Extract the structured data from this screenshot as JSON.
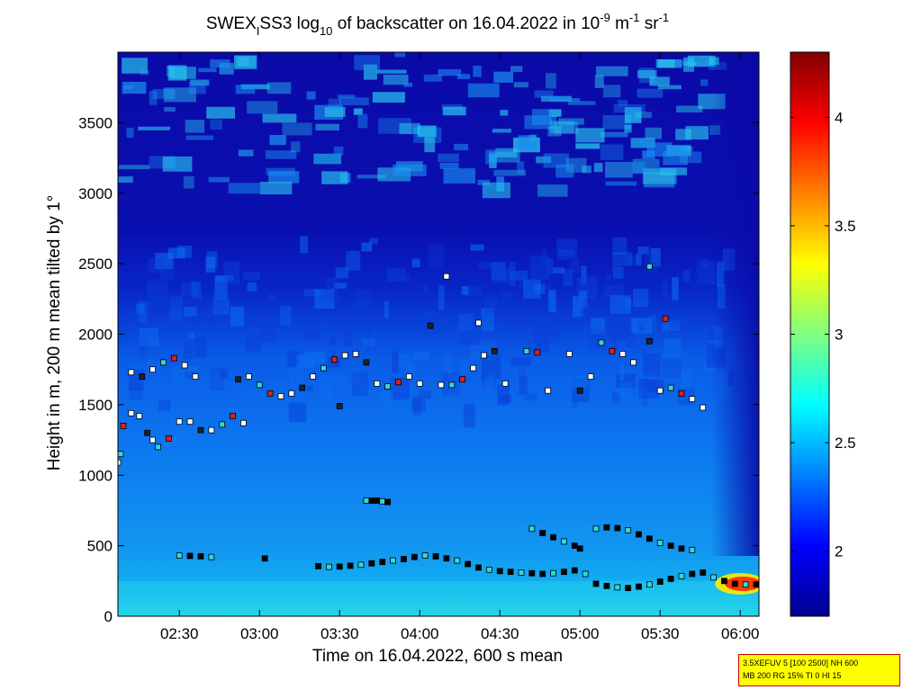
{
  "chart_data": {
    "type": "heatmap",
    "title": {
      "prefix": "SWEX",
      "sub1": "I",
      "mid1": "SS3 log",
      "sub2": "10",
      "mid2": " of backscatter on 16.04.2022 in 10",
      "sup1": "-9",
      "mid3": " m",
      "sup2": "-1",
      "mid4": " sr",
      "sup3": "-1"
    },
    "xlabel": "Time on 16.04.2022, 600 s mean",
    "ylabel": "Height in m, 200 m mean tilted by 1°",
    "x_range": [
      "02:07",
      "06:07"
    ],
    "ylim": [
      0,
      4000
    ],
    "x_ticks": [
      "02:30",
      "03:00",
      "03:30",
      "04:00",
      "04:30",
      "05:00",
      "05:30",
      "06:00"
    ],
    "y_ticks": [
      "0",
      "500",
      "1000",
      "1500",
      "2000",
      "2500",
      "3000",
      "3500"
    ],
    "colorbar": {
      "range": [
        1.7,
        4.3
      ],
      "ticks": [
        "2",
        "2.5",
        "3",
        "3.5",
        "4"
      ],
      "colormap": [
        "#00008f",
        "#0000ff",
        "#0080ff",
        "#00ffff",
        "#80ff80",
        "#ffff00",
        "#ff8000",
        "#ff0000",
        "#800000"
      ]
    },
    "layer_series": [
      {
        "name": "boundary-layer-top",
        "marker": "black-square",
        "points": [
          [
            "02:30",
            430
          ],
          [
            "02:34",
            428
          ],
          [
            "02:38",
            425
          ],
          [
            "02:42",
            420
          ],
          [
            "03:02",
            410
          ],
          [
            "03:22",
            355
          ],
          [
            "03:26",
            350
          ],
          [
            "03:30",
            352
          ],
          [
            "03:34",
            358
          ],
          [
            "03:38",
            365
          ],
          [
            "03:42",
            375
          ],
          [
            "03:46",
            385
          ],
          [
            "03:50",
            395
          ],
          [
            "03:54",
            405
          ],
          [
            "03:58",
            420
          ],
          [
            "04:02",
            430
          ],
          [
            "04:06",
            425
          ],
          [
            "04:10",
            410
          ],
          [
            "04:14",
            395
          ],
          [
            "04:18",
            370
          ],
          [
            "04:22",
            345
          ],
          [
            "04:26",
            330
          ],
          [
            "04:30",
            320
          ],
          [
            "04:34",
            315
          ],
          [
            "04:38",
            310
          ],
          [
            "04:42",
            305
          ],
          [
            "04:46",
            300
          ],
          [
            "04:50",
            305
          ],
          [
            "04:54",
            315
          ],
          [
            "04:58",
            325
          ],
          [
            "05:02",
            300
          ],
          [
            "05:06",
            230
          ],
          [
            "05:10",
            215
          ],
          [
            "05:14",
            205
          ],
          [
            "05:18",
            200
          ],
          [
            "05:22",
            210
          ],
          [
            "05:26",
            225
          ],
          [
            "05:30",
            245
          ],
          [
            "05:34",
            265
          ],
          [
            "05:38",
            285
          ],
          [
            "05:42",
            300
          ],
          [
            "05:46",
            310
          ],
          [
            "05:50",
            275
          ],
          [
            "05:54",
            250
          ],
          [
            "05:58",
            230
          ],
          [
            "06:02",
            225
          ],
          [
            "06:06",
            225
          ]
        ]
      },
      {
        "name": "lower-layer-2",
        "marker": "black-square",
        "points": [
          [
            "04:42",
            620
          ],
          [
            "04:46",
            590
          ],
          [
            "04:50",
            560
          ],
          [
            "04:54",
            530
          ],
          [
            "04:58",
            500
          ],
          [
            "05:00",
            480
          ],
          [
            "05:06",
            620
          ],
          [
            "05:10",
            630
          ],
          [
            "05:14",
            625
          ],
          [
            "05:18",
            610
          ],
          [
            "05:22",
            580
          ],
          [
            "05:26",
            550
          ],
          [
            "05:30",
            520
          ],
          [
            "05:34",
            500
          ],
          [
            "05:38",
            480
          ],
          [
            "05:42",
            470
          ]
        ]
      },
      {
        "name": "isolated-layer",
        "marker": "black-square",
        "points": [
          [
            "03:40",
            820
          ],
          [
            "03:42",
            820
          ],
          [
            "03:44",
            820
          ],
          [
            "03:46",
            815
          ],
          [
            "03:48",
            810
          ]
        ]
      },
      {
        "name": "aerosol-top",
        "marker": "mixed-square",
        "points": [
          [
            "02:07",
            1090
          ],
          [
            "02:08",
            1150
          ],
          [
            "02:09",
            1350
          ],
          [
            "02:12",
            1440
          ],
          [
            "02:15",
            1420
          ],
          [
            "02:18",
            1300
          ],
          [
            "02:20",
            1250
          ],
          [
            "02:22",
            1200
          ],
          [
            "02:26",
            1260
          ],
          [
            "02:30",
            1380
          ],
          [
            "02:34",
            1380
          ],
          [
            "02:38",
            1320
          ],
          [
            "02:42",
            1320
          ],
          [
            "02:46",
            1360
          ],
          [
            "02:50",
            1420
          ],
          [
            "02:54",
            1370
          ],
          [
            "02:12",
            1730
          ],
          [
            "02:16",
            1700
          ],
          [
            "02:20",
            1750
          ],
          [
            "02:24",
            1800
          ],
          [
            "02:28",
            1830
          ],
          [
            "02:32",
            1780
          ],
          [
            "02:36",
            1700
          ],
          [
            "02:52",
            1680
          ],
          [
            "02:56",
            1700
          ],
          [
            "03:00",
            1640
          ],
          [
            "03:04",
            1580
          ],
          [
            "03:08",
            1560
          ],
          [
            "03:12",
            1580
          ],
          [
            "03:16",
            1620
          ],
          [
            "03:20",
            1700
          ],
          [
            "03:24",
            1760
          ],
          [
            "03:28",
            1820
          ],
          [
            "03:32",
            1850
          ],
          [
            "03:36",
            1860
          ],
          [
            "03:40",
            1800
          ],
          [
            "03:44",
            1650
          ],
          [
            "03:48",
            1630
          ],
          [
            "03:52",
            1660
          ],
          [
            "03:56",
            1700
          ],
          [
            "04:00",
            1650
          ],
          [
            "04:04",
            2060
          ],
          [
            "04:08",
            1640
          ],
          [
            "04:12",
            1640
          ],
          [
            "04:16",
            1680
          ],
          [
            "04:20",
            1760
          ],
          [
            "04:24",
            1850
          ],
          [
            "04:28",
            1880
          ],
          [
            "04:32",
            1650
          ],
          [
            "04:40",
            1880
          ],
          [
            "04:44",
            1870
          ],
          [
            "04:48",
            1600
          ],
          [
            "04:56",
            1860
          ],
          [
            "05:00",
            1600
          ],
          [
            "05:04",
            1700
          ],
          [
            "05:08",
            1940
          ],
          [
            "05:12",
            1880
          ],
          [
            "05:16",
            1860
          ],
          [
            "05:20",
            1800
          ],
          [
            "05:26",
            1950
          ],
          [
            "05:30",
            1600
          ],
          [
            "05:34",
            1620
          ],
          [
            "05:38",
            1580
          ],
          [
            "05:42",
            1540
          ],
          [
            "05:46",
            1480
          ],
          [
            "03:30",
            1490
          ],
          [
            "04:10",
            2410
          ],
          [
            "05:26",
            2480
          ],
          [
            "05:32",
            2110
          ],
          [
            "04:22",
            2080
          ]
        ]
      }
    ]
  },
  "info_box": {
    "line1": "3.5XEFUV 5 [100 2500] NH 600",
    "line2": "MB 200 RG 15% TI 0 HI 15"
  }
}
